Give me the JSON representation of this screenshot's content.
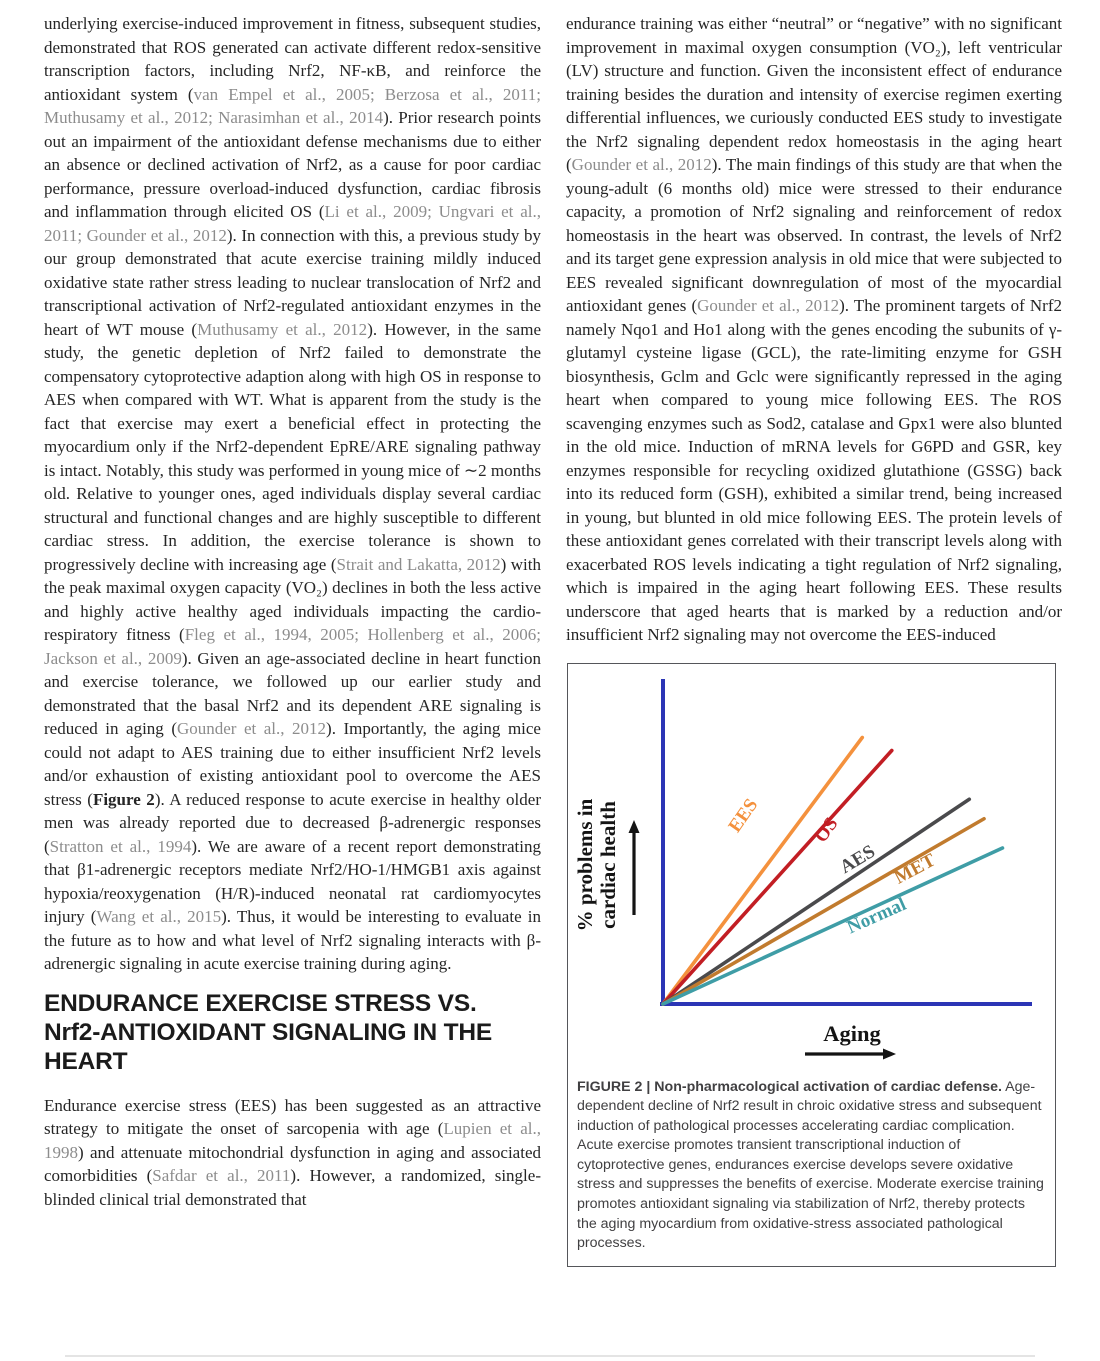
{
  "page": {
    "left_column": {
      "paragraph1": [
        {
          "t": "underlying exercise-induced improvement in fitness, subsequent studies, demonstrated that ROS generated can activate different redox-sensitive transcription factors, including Nrf2, NF-κB, and reinforce the antioxidant system ("
        },
        {
          "t": "van Empel et al., 2005; Berzosa et al., 2011; Muthusamy et al., 2012; Narasimhan et al., 2014",
          "s": "cite"
        },
        {
          "t": "). Prior research points out an impairment of the antioxidant defense mechanisms due to either an absence or declined activation of Nrf2, as a cause for poor cardiac performance, pressure overload-induced dysfunction, cardiac fibrosis and inflammation through elicited OS ("
        },
        {
          "t": "Li et al., 2009; Ungvari et al., 2011; Gounder et al., 2012",
          "s": "cite"
        },
        {
          "t": "). In connection with this, a previous study by our group demonstrated that acute exercise training mildly induced oxidative state rather stress leading to nuclear translocation of Nrf2 and transcriptional activation of Nrf2-regulated antioxidant enzymes in the heart of WT mouse ("
        },
        {
          "t": "Muthusamy et al., 2012",
          "s": "cite"
        },
        {
          "t": "). However, in the same study, the genetic depletion of Nrf2 failed to demonstrate the compensatory cytoprotective adaption along with high OS in response to AES when compared with WT. What is apparent from the study is the fact that exercise may exert a beneficial effect in protecting the myocardium only if the Nrf2-dependent EpRE/ARE signaling pathway is intact. Notably, this study was performed in young mice of ∼2 months old. Relative to younger ones, aged individuals display several cardiac structural and functional changes and are highly susceptible to different cardiac stress. In addition, the exercise tolerance is shown to progressively decline with increasing age ("
        },
        {
          "t": "Strait and Lakatta, 2012",
          "s": "cite"
        },
        {
          "t": ") with the peak maximal oxygen capacity (VO₂) declines in both the less active and highly active healthy aged individuals impacting the cardio-respiratory fitness ("
        },
        {
          "t": "Fleg et al., 1994, 2005; Hollenberg et al., 2006; Jackson et al., 2009",
          "s": "cite"
        },
        {
          "t": "). Given an age-associated decline in heart function and exercise tolerance, we followed up our earlier study and demonstrated that the basal Nrf2 and its dependent ARE signaling is reduced in aging ("
        },
        {
          "t": "Gounder et al., 2012",
          "s": "cite"
        },
        {
          "t": "). Importantly, the aging mice could not adapt to AES training due to either insufficient Nrf2 levels and/or exhaustion of existing antioxidant pool to overcome the AES stress ("
        },
        {
          "t": "Figure 2",
          "s": "b"
        },
        {
          "t": "). A reduced response to acute exercise in healthy older men was already reported due to decreased β-adrenergic responses ("
        },
        {
          "t": "Stratton et al., 1994",
          "s": "cite"
        },
        {
          "t": "). We are aware of a recent report demonstrating that β1-adrenergic receptors mediate Nrf2/HO-1/HMGB1 axis against hypoxia/reoxygenation (H/R)-induced neonatal rat cardiomyocytes injury ("
        },
        {
          "t": "Wang et al., 2015",
          "s": "cite"
        },
        {
          "t": "). Thus, it would be interesting to evaluate in the future as to how and what level of Nrf2 signaling interacts with β-adrenergic signaling in acute exercise training during aging."
        }
      ],
      "heading_lines": [
        "ENDURANCE EXERCISE STRESS VS.",
        "Nrf2-ANTIOXIDANT SIGNALING IN THE",
        "HEART"
      ],
      "paragraph2": [
        {
          "t": "Endurance exercise stress (EES) has been suggested as an attractive strategy to mitigate the onset of sarcopenia with age ("
        },
        {
          "t": "Lupien et al., 1998",
          "s": "cite"
        },
        {
          "t": ") and attenuate mitochondrial dysfunction in aging and associated comorbidities ("
        },
        {
          "t": "Safdar et al., 2011",
          "s": "cite"
        },
        {
          "t": "). However, a randomized, single-blinded clinical trial demonstrated that"
        }
      ]
    },
    "right_column": {
      "paragraph3": [
        {
          "t": "endurance training was either “neutral” or “negative” with no significant improvement in maximal oxygen consumption (VO₂), left ventricular (LV) structure and function. Given the inconsistent effect of endurance training besides the duration and intensity of exercise regimen exerting differential influences, we curiously conducted EES study to investigate the Nrf2 signaling dependent redox homeostasis in the aging heart ("
        },
        {
          "t": "Gounder et al., 2012",
          "s": "cite"
        },
        {
          "t": "). The main findings of this study are that when the young-adult (6 months old) mice were stressed to their endurance capacity, a promotion of Nrf2 signaling and reinforcement of redox homeostasis in the heart was observed. In contrast, the levels of Nrf2 and its target gene expression analysis in old mice that were subjected to EES revealed significant downregulation of most of the myocardial antioxidant genes ("
        },
        {
          "t": "Gounder et al., 2012",
          "s": "cite"
        },
        {
          "t": "). The prominent targets of Nrf2 namely Nqo1 and Ho1 along with the genes encoding the subunits of γ-glutamyl cysteine ligase (GCL), the rate-limiting enzyme for GSH biosynthesis, Gclm and Gclc were significantly repressed in the aging heart when compared to young mice following EES. The ROS scavenging enzymes such as Sod2, catalase and Gpx1 were also blunted in the old mice. Induction of mRNA levels for G6PD and GSR, key enzymes responsible for recycling oxidized glutathione (GSSG) back into its reduced form (GSH), exhibited a similar trend, being increased in young, but blunted in old mice following EES. The protein levels of these antioxidant genes correlated with their transcript levels along with exacerbated ROS levels indicating a tight regulation of Nrf2 signaling, which is impaired in the aging heart following EES. These results underscore that aged hearts that is marked by a reduction and/or insufficient Nrf2 signaling may not overcome the EES-induced"
        }
      ]
    },
    "figure_caption": [
      {
        "t": "FIGURE 2 | Non-pharmacological activation of cardiac defense.",
        "s": "b"
      },
      {
        "t": " Age-dependent decline of Nrf2 result in chroic oxidative stress and subsequent induction of pathological processes accelerating cardiac complication. Acute exercise promotes transient transcriptional induction of cytoprotective genes, endurances exercise develops severe oxidative stress and suppresses the benefits of exercise. Moderate exercise training promotes antioxidant signaling via stabilization of Nrf2, thereby protects the aging myocardium from oxidative-stress associated pathological processes."
      }
    ]
  },
  "chart_data": {
    "type": "line",
    "title": "",
    "xlabel": "Aging",
    "ylabel": "% problems in cardiac health",
    "ylabel_lines": [
      "% problems in",
      "cardiac health"
    ],
    "axis_color": "#2b35b5",
    "arrow_color": "#141414",
    "description": "Conceptual schematic with unlabeled axes: all lines start at the origin; steeper slope = faster accumulation of cardiac health problems with aging.",
    "x_range": [
      0,
      1
    ],
    "y_range": [
      0,
      1
    ],
    "grid": false,
    "legend": "labels placed along lines",
    "series": [
      {
        "name": "EES",
        "color": "#f4913d",
        "end": [
          0.54,
          0.82
        ],
        "label_pos": [
          0.23,
          0.57
        ],
        "label_angle": -55
      },
      {
        "name": "OS",
        "color": "#c21e24",
        "end": [
          0.62,
          0.78
        ],
        "label_pos": [
          0.455,
          0.525
        ],
        "label_angle": -54
      },
      {
        "name": "AES",
        "color": "#4a4a4c",
        "end": [
          0.83,
          0.63
        ],
        "label_pos": [
          0.535,
          0.43
        ],
        "label_angle": -31
      },
      {
        "name": "MET",
        "color": "#c17b2e",
        "end": [
          0.87,
          0.57
        ],
        "label_pos": [
          0.69,
          0.4
        ],
        "label_angle": -28
      },
      {
        "name": "Normal",
        "color": "#3f9da6",
        "end": [
          0.92,
          0.48
        ],
        "label_pos": [
          0.585,
          0.255
        ],
        "label_angle": -24
      }
    ]
  }
}
